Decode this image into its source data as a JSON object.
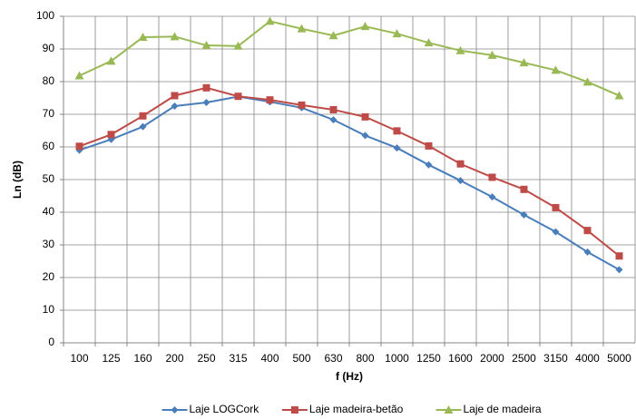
{
  "chart_data": {
    "type": "line",
    "xlabel": "f (Hz)",
    "ylabel": "Ln (dB)",
    "categories": [
      "100",
      "125",
      "160",
      "200",
      "250",
      "315",
      "400",
      "500",
      "630",
      "800",
      "1000",
      "1250",
      "1600",
      "2000",
      "2500",
      "3150",
      "4000",
      "5000"
    ],
    "series": [
      {
        "name": "Laje LOGCork",
        "color": "#4a7ebb",
        "marker": "diamond",
        "values": [
          59,
          62.3,
          66.2,
          72.5,
          73.6,
          75.4,
          73.8,
          72,
          68.3,
          63.5,
          59.7,
          54.5,
          49.7,
          44.7,
          39.2,
          34,
          27.8,
          22.4
        ]
      },
      {
        "name": "Laje madeira-betão",
        "color": "#be4b48",
        "marker": "square",
        "values": [
          60.2,
          63.8,
          69.5,
          75.7,
          78.1,
          75.5,
          74.4,
          72.8,
          71.4,
          69.2,
          64.9,
          60.3,
          54.8,
          50.7,
          47,
          41.4,
          34.4,
          26.6
        ]
      },
      {
        "name": "Laje de madeira",
        "color": "#98b954",
        "marker": "triangle",
        "values": [
          81.8,
          86.3,
          93.6,
          93.8,
          91.1,
          90.9,
          98.5,
          96.2,
          94.1,
          96.9,
          94.7,
          91.9,
          89.5,
          88.1,
          85.8,
          83.5,
          79.9,
          75.7
        ]
      }
    ],
    "ylim": [
      0,
      100
    ],
    "yticks": [
      0,
      10,
      20,
      30,
      40,
      50,
      60,
      70,
      80,
      90,
      100
    ],
    "grid": true,
    "legend": "bottom"
  }
}
